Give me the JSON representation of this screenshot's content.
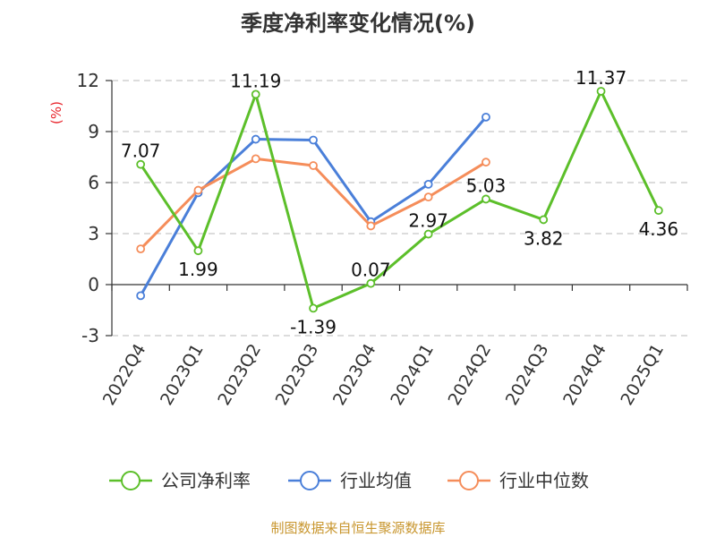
{
  "chart_data": {
    "type": "line",
    "title": "季度净利率变化情况(%)",
    "ylabel": "(%)",
    "ylim": [
      -3,
      12
    ],
    "yticks": [
      -3,
      0,
      3,
      6,
      9,
      12
    ],
    "grid": "horizontal-dashed",
    "categories": [
      "2022Q4",
      "2023Q1",
      "2023Q2",
      "2023Q3",
      "2023Q4",
      "2024Q1",
      "2024Q2",
      "2024Q3",
      "2024Q4",
      "2025Q1"
    ],
    "series": [
      {
        "name": "公司净利率",
        "color": "#5cbf2a",
        "values": [
          7.07,
          1.99,
          11.19,
          -1.39,
          0.07,
          2.97,
          5.03,
          3.82,
          11.37,
          4.36
        ],
        "labels": [
          "7.07",
          "1.99",
          "11.19",
          "-1.39",
          "0.07",
          "2.97",
          "5.03",
          "3.82",
          "11.37",
          "4.36"
        ]
      },
      {
        "name": "行业均值",
        "color": "#4a7fd9",
        "values": [
          -0.65,
          5.4,
          8.55,
          8.5,
          3.7,
          5.9,
          9.85,
          null,
          null,
          null
        ]
      },
      {
        "name": "行业中位数",
        "color": "#f58d5a",
        "values": [
          2.1,
          5.55,
          7.4,
          7.0,
          3.45,
          5.15,
          7.2,
          null,
          null,
          null
        ]
      }
    ],
    "legend_position": "bottom",
    "source": "制图数据来自恒生聚源数据库"
  }
}
